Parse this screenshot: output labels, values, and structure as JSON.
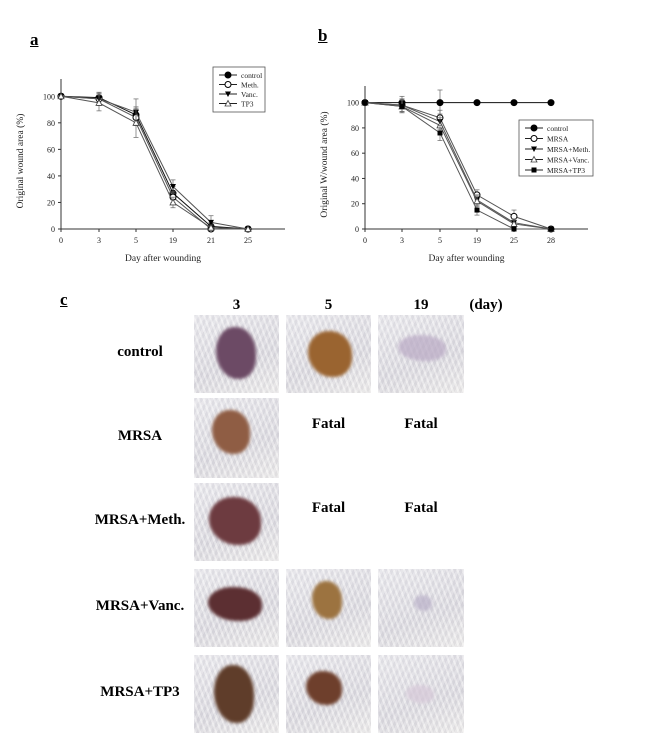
{
  "panels": {
    "a": {
      "label": "a"
    },
    "b": {
      "label": "b"
    },
    "c": {
      "label": "c"
    }
  },
  "chart_data": [
    {
      "id": "a",
      "type": "line",
      "title": "",
      "xlabel": "Day after wounding",
      "ylabel": "Original wound area (%)",
      "categories": [
        "0",
        "3",
        "5",
        "19",
        "21",
        "25"
      ],
      "ylim": [
        0,
        110
      ],
      "yticks": [
        0,
        20,
        40,
        60,
        80,
        100
      ],
      "grid": false,
      "legend_position": "upper right",
      "series": [
        {
          "name": "control",
          "marker": "filled-circle",
          "values": [
            100,
            99,
            86,
            27,
            2,
            0
          ],
          "err": [
            0,
            4,
            6,
            5,
            3,
            0
          ]
        },
        {
          "name": "Meth.",
          "marker": "open-circle",
          "values": [
            100,
            98,
            84,
            24,
            0,
            0
          ],
          "err": [
            0,
            4,
            6,
            4,
            2,
            0
          ]
        },
        {
          "name": "Vanc.",
          "marker": "filled-triangle-down",
          "values": [
            100,
            98,
            88,
            32,
            5,
            0
          ],
          "err": [
            0,
            5,
            10,
            5,
            5,
            0
          ]
        },
        {
          "name": "TP3",
          "marker": "open-triangle-up",
          "values": [
            100,
            95,
            80,
            20,
            1,
            0
          ],
          "err": [
            0,
            6,
            11,
            4,
            2,
            0
          ]
        }
      ]
    },
    {
      "id": "b",
      "type": "line",
      "title": "",
      "xlabel": "Day after wounding",
      "ylabel": "Original W/wound area (%)",
      "categories": [
        "0",
        "3",
        "5",
        "19",
        "25",
        "28"
      ],
      "ylim": [
        0,
        110
      ],
      "yticks": [
        0,
        20,
        40,
        60,
        80,
        100
      ],
      "grid": false,
      "legend_position": "center right",
      "series": [
        {
          "name": "control",
          "marker": "filled-circle",
          "values": [
            100,
            100,
            100,
            100,
            100,
            100
          ],
          "err": [
            0,
            5,
            10,
            0,
            0,
            0
          ]
        },
        {
          "name": "MRSA",
          "marker": "open-circle",
          "values": [
            100,
            98,
            88,
            27,
            10,
            0
          ],
          "err": [
            0,
            5,
            6,
            4,
            5,
            0
          ]
        },
        {
          "name": "MRSA+Meth.",
          "marker": "filled-triangle-down",
          "values": [
            100,
            98,
            85,
            23,
            5,
            0
          ],
          "err": [
            0,
            5,
            6,
            4,
            3,
            0
          ]
        },
        {
          "name": "MRSA+Vanc.",
          "marker": "open-triangle-up",
          "values": [
            100,
            97,
            82,
            22,
            4,
            0
          ],
          "err": [
            0,
            5,
            6,
            4,
            3,
            0
          ]
        },
        {
          "name": "MRSA+TP3",
          "marker": "filled-square",
          "values": [
            100,
            97,
            76,
            15,
            0,
            0
          ],
          "err": [
            0,
            5,
            6,
            4,
            0,
            0
          ]
        }
      ]
    }
  ],
  "photo_grid": {
    "day_headers": [
      "3",
      "5",
      "19"
    ],
    "day_unit": "(day)",
    "rows": [
      {
        "label": "control",
        "cells": [
          "photo",
          "photo",
          "photo"
        ]
      },
      {
        "label": "MRSA",
        "cells": [
          "photo",
          "Fatal",
          "Fatal"
        ]
      },
      {
        "label": "MRSA+Meth.",
        "cells": [
          "photo",
          "Fatal",
          "Fatal"
        ]
      },
      {
        "label": "MRSA+Vanc.",
        "cells": [
          "photo",
          "photo",
          "photo"
        ]
      },
      {
        "label": "MRSA+TP3",
        "cells": [
          "photo",
          "photo",
          "photo"
        ]
      }
    ],
    "fatal_text": "Fatal"
  }
}
